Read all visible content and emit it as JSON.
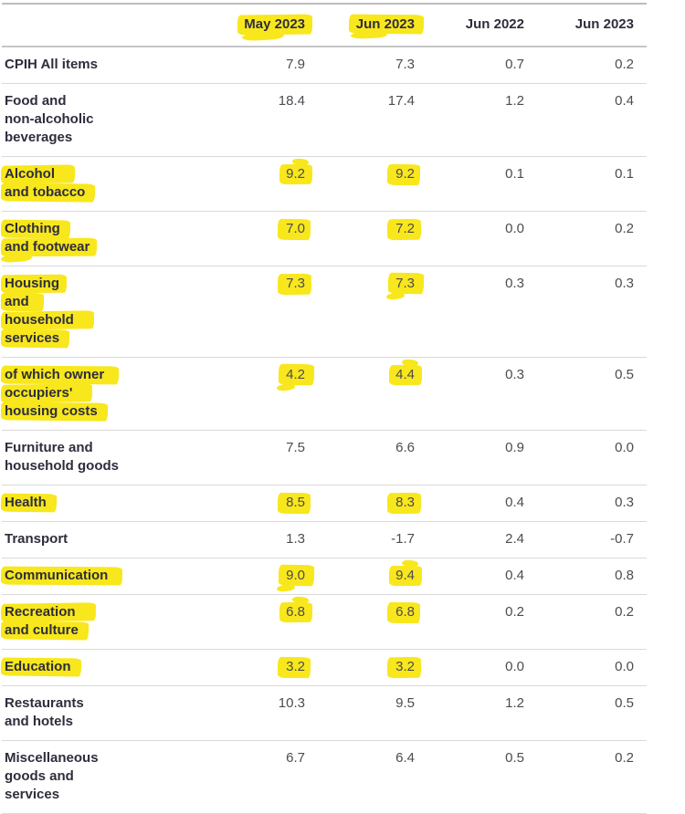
{
  "colors": {
    "highlight_marker": "#f8e71c",
    "header_text": "#2e2d3c",
    "value_text": "#4c4b50",
    "row_divider": "#d9d9d9",
    "header_divider": "#bdbdbd"
  },
  "table": {
    "row_header_label": "",
    "columns": [
      {
        "label": "May 2023",
        "highlighted": true
      },
      {
        "label": "Jun 2023",
        "highlighted": true
      },
      {
        "label": "Jun 2022",
        "highlighted": false
      },
      {
        "label": "Jun 2023",
        "highlighted": false
      }
    ],
    "rows": [
      {
        "label": "CPIH All items",
        "label_lines": [
          "CPIH All items"
        ],
        "label_highlighted": false,
        "values": [
          "7.9",
          "7.3",
          "0.7",
          "0.2"
        ],
        "value_highlights": [
          false,
          false,
          false,
          false
        ]
      },
      {
        "label": "Food and non-alcoholic beverages",
        "label_lines": [
          "Food and",
          "non-alcoholic",
          "beverages"
        ],
        "label_highlighted": false,
        "values": [
          "18.4",
          "17.4",
          "1.2",
          "0.4"
        ],
        "value_highlights": [
          false,
          false,
          false,
          false
        ]
      },
      {
        "label": "Alcohol and tobacco",
        "label_lines": [
          "Alcohol",
          "and tobacco"
        ],
        "label_highlighted": true,
        "values": [
          "9.2",
          "9.2",
          "0.1",
          "0.1"
        ],
        "value_highlights": [
          true,
          true,
          false,
          false
        ]
      },
      {
        "label": "Clothing and footwear",
        "label_lines": [
          "Clothing",
          "and footwear"
        ],
        "label_highlighted": true,
        "values": [
          "7.0",
          "7.2",
          "0.0",
          "0.2"
        ],
        "value_highlights": [
          true,
          true,
          false,
          false
        ]
      },
      {
        "label": "Housing and household services",
        "label_lines": [
          "Housing",
          "and",
          "household",
          "services"
        ],
        "label_highlighted": true,
        "values": [
          "7.3",
          "7.3",
          "0.3",
          "0.3"
        ],
        "value_highlights": [
          true,
          true,
          false,
          false
        ]
      },
      {
        "label": "of which owner occupiers' housing costs",
        "label_lines": [
          "of which owner",
          "occupiers'",
          "housing costs"
        ],
        "label_highlighted": true,
        "values": [
          "4.2",
          "4.4",
          "0.3",
          "0.5"
        ],
        "value_highlights": [
          true,
          true,
          false,
          false
        ]
      },
      {
        "label": "Furniture and household goods",
        "label_lines": [
          "Furniture and",
          "household goods"
        ],
        "label_highlighted": false,
        "values": [
          "7.5",
          "6.6",
          "0.9",
          "0.0"
        ],
        "value_highlights": [
          false,
          false,
          false,
          false
        ]
      },
      {
        "label": "Health",
        "label_lines": [
          "Health"
        ],
        "label_highlighted": true,
        "values": [
          "8.5",
          "8.3",
          "0.4",
          "0.3"
        ],
        "value_highlights": [
          true,
          true,
          false,
          false
        ]
      },
      {
        "label": "Transport",
        "label_lines": [
          "Transport"
        ],
        "label_highlighted": false,
        "values": [
          "1.3",
          "-1.7",
          "2.4",
          "-0.7"
        ],
        "value_highlights": [
          false,
          false,
          false,
          false
        ]
      },
      {
        "label": "Communication",
        "label_lines": [
          "Communication"
        ],
        "label_highlighted": true,
        "values": [
          "9.0",
          "9.4",
          "0.4",
          "0.8"
        ],
        "value_highlights": [
          true,
          true,
          false,
          false
        ]
      },
      {
        "label": "Recreation and culture",
        "label_lines": [
          "Recreation",
          "and culture"
        ],
        "label_highlighted": true,
        "values": [
          "6.8",
          "6.8",
          "0.2",
          "0.2"
        ],
        "value_highlights": [
          true,
          true,
          false,
          false
        ]
      },
      {
        "label": "Education",
        "label_lines": [
          "Education"
        ],
        "label_highlighted": true,
        "values": [
          "3.2",
          "3.2",
          "0.0",
          "0.0"
        ],
        "value_highlights": [
          true,
          true,
          false,
          false
        ]
      },
      {
        "label": "Restaurants and hotels",
        "label_lines": [
          "Restaurants",
          "and hotels"
        ],
        "label_highlighted": false,
        "values": [
          "10.3",
          "9.5",
          "1.2",
          "0.5"
        ],
        "value_highlights": [
          false,
          false,
          false,
          false
        ]
      },
      {
        "label": "Miscellaneous goods and services",
        "label_lines": [
          "Miscellaneous",
          "goods and",
          "services"
        ],
        "label_highlighted": false,
        "values": [
          "6.7",
          "6.4",
          "0.5",
          "0.2"
        ],
        "value_highlights": [
          false,
          false,
          false,
          false
        ]
      }
    ]
  },
  "chart_data": {
    "type": "table",
    "title": "",
    "columns": [
      "",
      "May 2023",
      "Jun 2023",
      "Jun 2022",
      "Jun 2023"
    ],
    "rows": [
      [
        "CPIH All items",
        7.9,
        7.3,
        0.7,
        0.2
      ],
      [
        "Food and non-alcoholic beverages",
        18.4,
        17.4,
        1.2,
        0.4
      ],
      [
        "Alcohol and tobacco",
        9.2,
        9.2,
        0.1,
        0.1
      ],
      [
        "Clothing and footwear",
        7.0,
        7.2,
        0.0,
        0.2
      ],
      [
        "Housing and household services",
        7.3,
        7.3,
        0.3,
        0.3
      ],
      [
        "of which owner occupiers' housing costs",
        4.2,
        4.4,
        0.3,
        0.5
      ],
      [
        "Furniture and household goods",
        7.5,
        6.6,
        0.9,
        0.0
      ],
      [
        "Health",
        8.5,
        8.3,
        0.4,
        0.3
      ],
      [
        "Transport",
        1.3,
        -1.7,
        2.4,
        -0.7
      ],
      [
        "Communication",
        9.0,
        9.4,
        0.4,
        0.8
      ],
      [
        "Recreation and culture",
        6.8,
        6.8,
        0.2,
        0.2
      ],
      [
        "Education",
        3.2,
        3.2,
        0.0,
        0.0
      ],
      [
        "Restaurants and hotels",
        10.3,
        9.5,
        1.2,
        0.5
      ],
      [
        "Miscellaneous goods and services",
        6.7,
        6.4,
        0.5,
        0.2
      ]
    ],
    "highlighted_column_headers": [
      "May 2023",
      "Jun 2023"
    ],
    "highlighted_rows": [
      "Alcohol and tobacco",
      "Clothing and footwear",
      "Housing and household services",
      "of which owner occupiers' housing costs",
      "Health",
      "Communication",
      "Recreation and culture",
      "Education"
    ],
    "highlight_note": "yellow marker strokes over row labels and the May 2023 / Jun 2023 values of highlighted rows"
  }
}
